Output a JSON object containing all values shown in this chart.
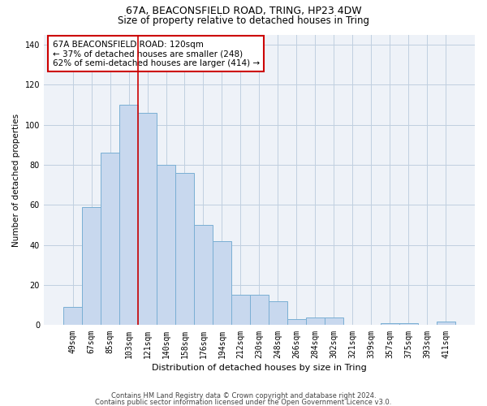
{
  "title1": "67A, BEACONSFIELD ROAD, TRING, HP23 4DW",
  "title2": "Size of property relative to detached houses in Tring",
  "xlabel": "Distribution of detached houses by size in Tring",
  "ylabel": "Number of detached properties",
  "categories": [
    "49sqm",
    "67sqm",
    "85sqm",
    "103sqm",
    "121sqm",
    "140sqm",
    "158sqm",
    "176sqm",
    "194sqm",
    "212sqm",
    "230sqm",
    "248sqm",
    "266sqm",
    "284sqm",
    "302sqm",
    "321sqm",
    "339sqm",
    "357sqm",
    "375sqm",
    "393sqm",
    "411sqm"
  ],
  "values": [
    9,
    59,
    86,
    110,
    106,
    80,
    76,
    50,
    42,
    15,
    15,
    12,
    3,
    4,
    4,
    0,
    0,
    1,
    1,
    0,
    2
  ],
  "bar_color": "#c8d8ee",
  "bar_edge_color": "#7aafd4",
  "vline_color": "#cc0000",
  "vline_x_index": 3.5,
  "annotation_line1": "67A BEACONSFIELD ROAD: 120sqm",
  "annotation_line2": "← 37% of detached houses are smaller (248)",
  "annotation_line3": "62% of semi-detached houses are larger (414) →",
  "annotation_box_color": "#ffffff",
  "annotation_box_edge": "#cc0000",
  "ylim": [
    0,
    145
  ],
  "yticks": [
    0,
    20,
    40,
    60,
    80,
    100,
    120,
    140
  ],
  "grid_color": "#c0cfe0",
  "footer_line1": "Contains HM Land Registry data © Crown copyright and database right 2024.",
  "footer_line2": "Contains public sector information licensed under the Open Government Licence v3.0.",
  "bg_color": "#eef2f8",
  "title1_fontsize": 9,
  "title2_fontsize": 8.5,
  "xlabel_fontsize": 8,
  "ylabel_fontsize": 7.5,
  "tick_fontsize": 7,
  "annotation_fontsize": 7.5,
  "footer_fontsize": 6
}
